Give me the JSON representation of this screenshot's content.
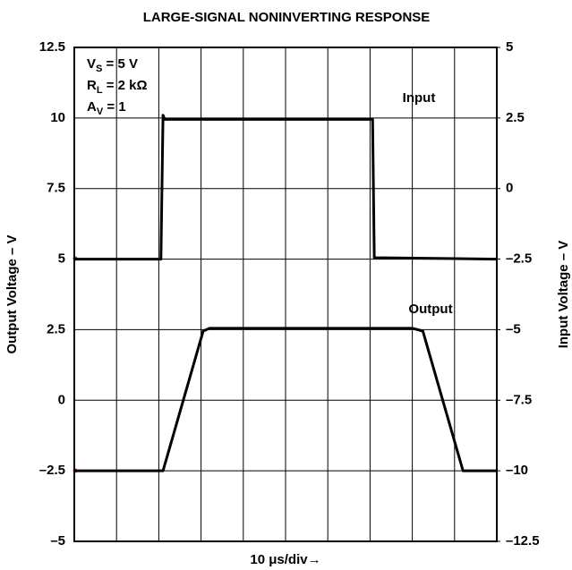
{
  "chart_data": {
    "type": "line",
    "title": "LARGE-SIGNAL NONINVERTING RESPONSE",
    "xlabel": "10 μs/div→",
    "ylabel": "Output Voltage – V",
    "y2label": "Input Voltage – V",
    "annotations": [
      {
        "main": "V",
        "sub": "S",
        "rest": " = 5 V"
      },
      {
        "main": "R",
        "sub": "L",
        "rest": " = 2 kΩ"
      },
      {
        "main": "A",
        "sub": "V",
        "rest": " = 1"
      }
    ],
    "xlim": [
      0,
      10
    ],
    "xticks": [
      0,
      1,
      2,
      3,
      4,
      5,
      6,
      7,
      8,
      9,
      10
    ],
    "ylim": [
      -5,
      12.5
    ],
    "yticks": [
      {
        "value": -5,
        "label": "–5"
      },
      {
        "value": -2.5,
        "label": "–2.5"
      },
      0,
      2.5,
      5,
      7.5,
      10,
      12.5
    ],
    "y2lim": [
      -12.5,
      5
    ],
    "y2ticks": [
      {
        "value": -12.5,
        "label": "–12.5"
      },
      {
        "value": -10,
        "label": "–10"
      },
      {
        "value": -7.5,
        "label": "–7.5"
      },
      {
        "value": -5,
        "label": "–5"
      },
      {
        "value": -2.5,
        "label": "–2.5"
      },
      0,
      2.5,
      5
    ],
    "grid": true,
    "series": [
      {
        "name": "Input",
        "color": "#000000",
        "axis": "y2",
        "x": [
          0,
          2.05,
          2.1,
          2.14,
          7.06,
          7.1,
          10
        ],
        "values": [
          -2.5,
          -2.5,
          2.6,
          2.45,
          2.45,
          -2.45,
          -2.5
        ]
      },
      {
        "name": "Output",
        "color": "#000000",
        "x": [
          0,
          2.1,
          3.05,
          3.2,
          8.0,
          8.25,
          9.2,
          10
        ],
        "values": [
          -2.5,
          -2.5,
          2.45,
          2.55,
          2.55,
          2.45,
          -2.5,
          -2.5
        ]
      }
    ]
  }
}
